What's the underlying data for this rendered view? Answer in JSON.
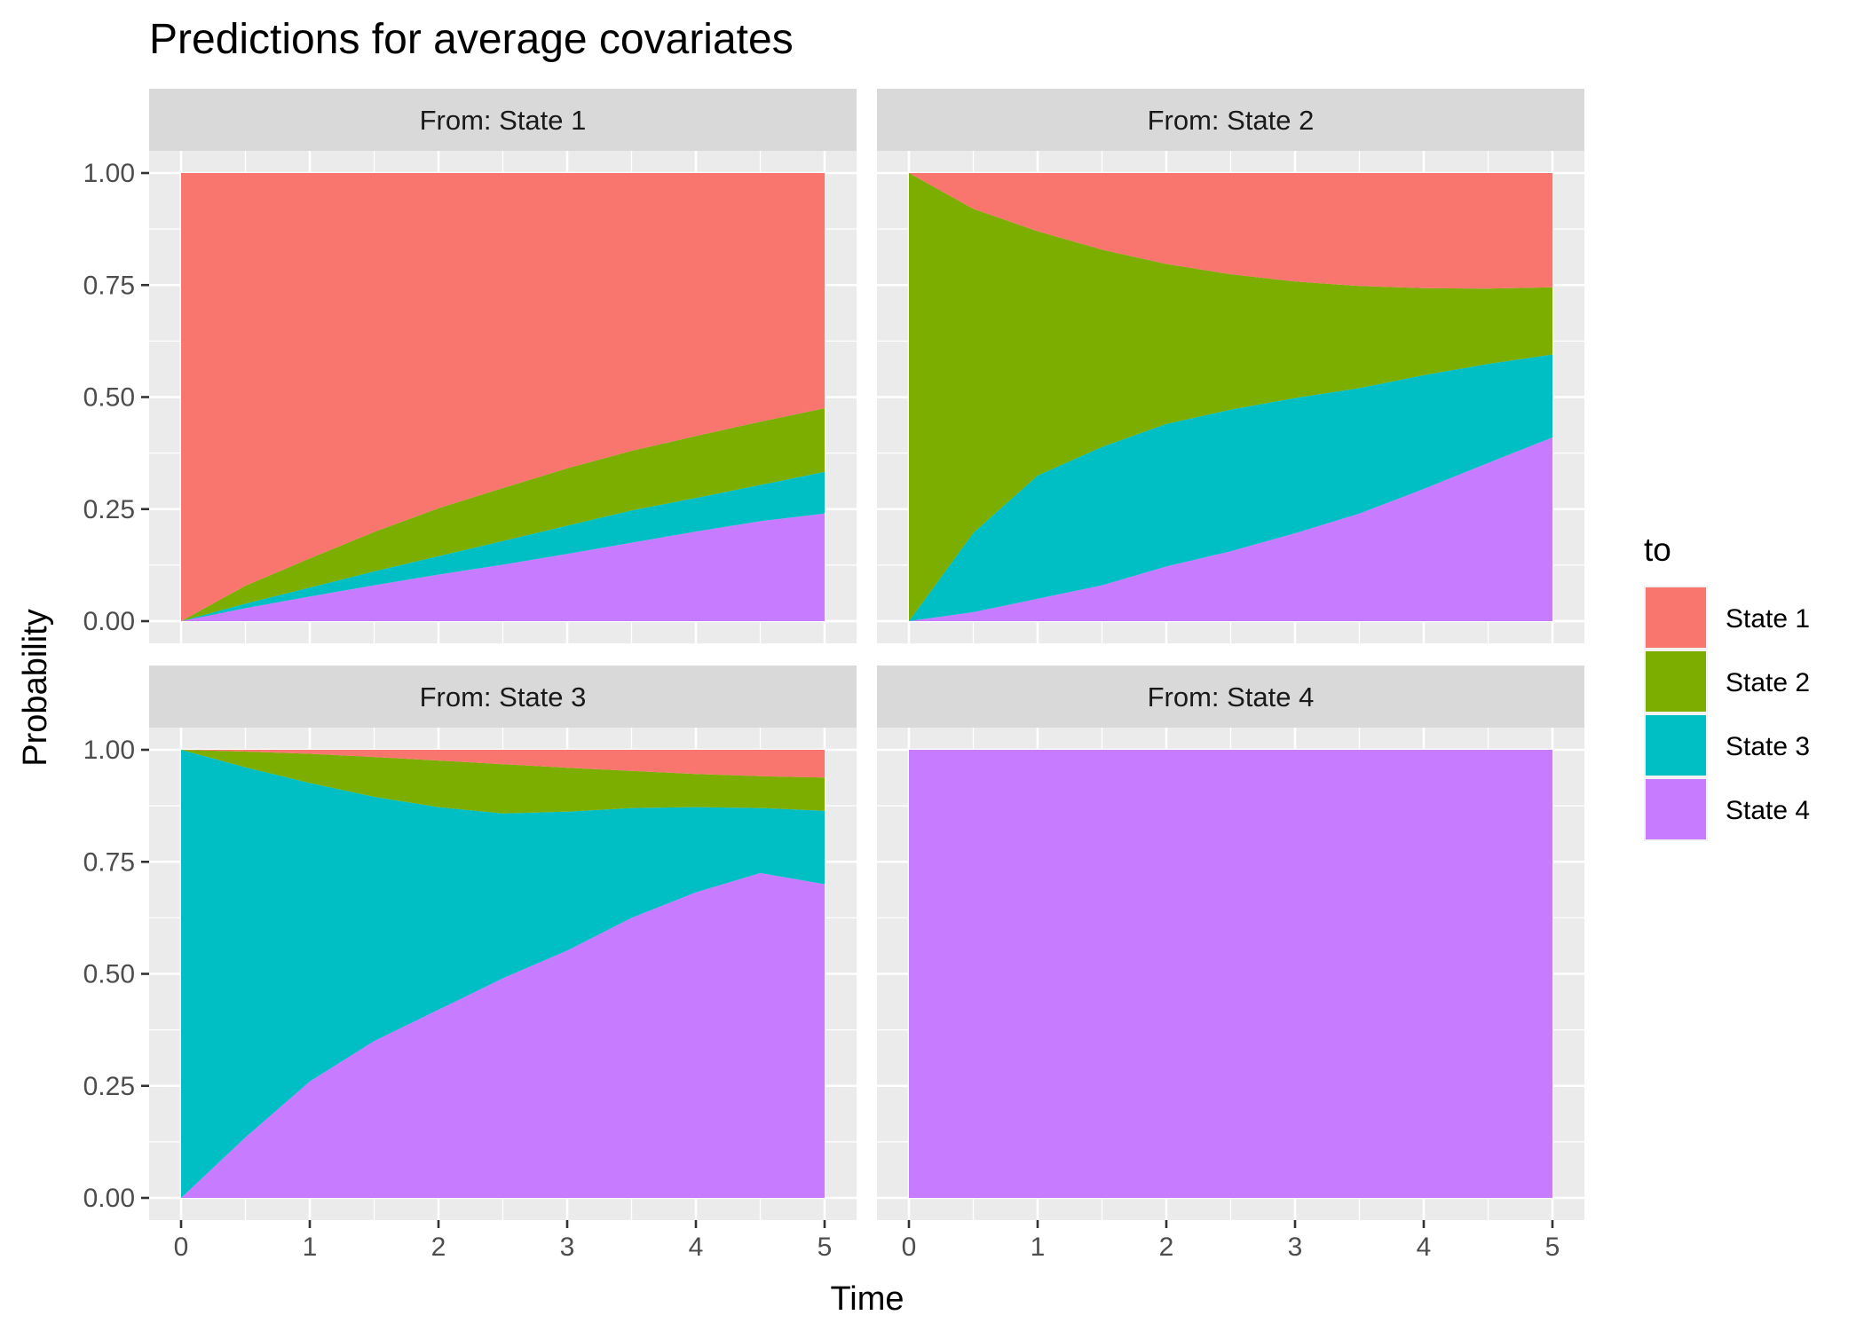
{
  "chart_data": {
    "type": "area",
    "title": "Predictions for average covariates",
    "xlabel": "Time",
    "ylabel": "Probability",
    "xlim": [
      0,
      5
    ],
    "ylim": [
      0,
      1
    ],
    "x_ticks": [
      "0",
      "1",
      "2",
      "3",
      "4",
      "5"
    ],
    "y_ticks": [
      "0.00",
      "0.25",
      "0.50",
      "0.75",
      "1.00"
    ],
    "stacked": true,
    "grid": true,
    "legend": {
      "title": "to",
      "position": "right",
      "entries": [
        "State 1",
        "State 2",
        "State 3",
        "State 4"
      ],
      "colors": [
        "#F8766D",
        "#7CAE00",
        "#00BFC4",
        "#C77CFF"
      ]
    },
    "x": [
      0,
      0.5,
      1,
      1.5,
      2,
      2.5,
      3,
      3.5,
      4,
      4.5,
      5
    ],
    "facets": [
      {
        "strip": "From: State 1",
        "series": [
          {
            "name": "State 1",
            "values": [
              1.0,
              0.921,
              0.86,
              0.801,
              0.748,
              0.703,
              0.659,
              0.62,
              0.587,
              0.555,
              0.525
            ]
          },
          {
            "name": "State 2",
            "values": [
              0.0,
              0.04,
              0.065,
              0.088,
              0.107,
              0.118,
              0.128,
              0.133,
              0.138,
              0.141,
              0.142
            ]
          },
          {
            "name": "State 3",
            "values": [
              0.0,
              0.01,
              0.02,
              0.031,
              0.041,
              0.053,
              0.063,
              0.072,
              0.075,
              0.081,
              0.093
            ]
          },
          {
            "name": "State 4",
            "values": [
              0.0,
              0.029,
              0.055,
              0.08,
              0.104,
              0.126,
              0.15,
              0.175,
              0.2,
              0.223,
              0.24
            ]
          }
        ]
      },
      {
        "strip": "From: State 2",
        "series": [
          {
            "name": "State 1",
            "values": [
              0.0,
              0.08,
              0.13,
              0.171,
              0.203,
              0.226,
              0.242,
              0.252,
              0.257,
              0.258,
              0.255
            ]
          },
          {
            "name": "State 2",
            "values": [
              1.0,
              0.723,
              0.545,
              0.44,
              0.357,
              0.302,
              0.26,
              0.228,
              0.194,
              0.168,
              0.15
            ]
          },
          {
            "name": "State 3",
            "values": [
              0.0,
              0.177,
              0.275,
              0.309,
              0.318,
              0.316,
              0.302,
              0.28,
              0.254,
              0.221,
              0.185
            ]
          },
          {
            "name": "State 4",
            "values": [
              0.0,
              0.02,
              0.05,
              0.08,
              0.122,
              0.156,
              0.196,
              0.24,
              0.295,
              0.353,
              0.41
            ]
          }
        ]
      },
      {
        "strip": "From: State 3",
        "series": [
          {
            "name": "State 1",
            "values": [
              0.0,
              0.004,
              0.009,
              0.016,
              0.024,
              0.032,
              0.04,
              0.047,
              0.054,
              0.059,
              0.062
            ]
          },
          {
            "name": "State 2",
            "values": [
              0.0,
              0.035,
              0.065,
              0.089,
              0.104,
              0.11,
              0.098,
              0.083,
              0.074,
              0.071,
              0.074
            ]
          },
          {
            "name": "State 3",
            "values": [
              1.0,
              0.826,
              0.666,
              0.545,
              0.452,
              0.368,
              0.31,
              0.245,
              0.19,
              0.145,
              0.164
            ]
          },
          {
            "name": "State 4",
            "values": [
              0.0,
              0.135,
              0.26,
              0.35,
              0.42,
              0.49,
              0.552,
              0.625,
              0.682,
              0.725,
              0.7
            ]
          }
        ]
      },
      {
        "strip": "From: State 4",
        "series": [
          {
            "name": "State 1",
            "values": [
              0,
              0,
              0,
              0,
              0,
              0,
              0,
              0,
              0,
              0,
              0
            ]
          },
          {
            "name": "State 2",
            "values": [
              0,
              0,
              0,
              0,
              0,
              0,
              0,
              0,
              0,
              0,
              0
            ]
          },
          {
            "name": "State 3",
            "values": [
              0,
              0,
              0,
              0,
              0,
              0,
              0,
              0,
              0,
              0,
              0
            ]
          },
          {
            "name": "State 4",
            "values": [
              1,
              1,
              1,
              1,
              1,
              1,
              1,
              1,
              1,
              1,
              1
            ]
          }
        ]
      }
    ]
  }
}
